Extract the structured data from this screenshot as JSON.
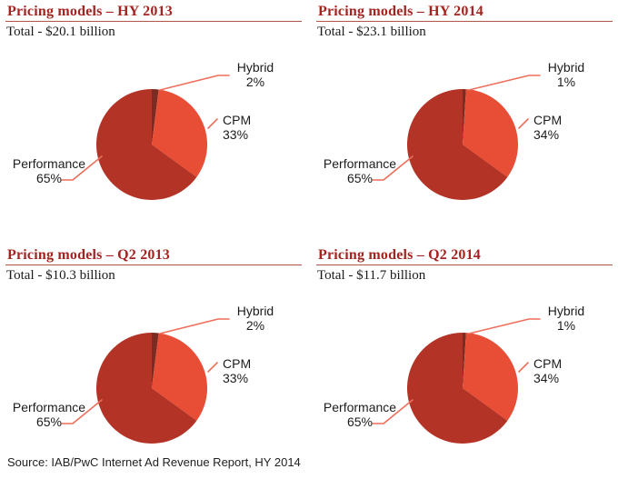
{
  "colors": {
    "title_red": "#A32421",
    "rule_red": "#B2564C",
    "leader_line": "#EE6F5B",
    "label_text": "#1C1C1C",
    "background": "#FFFFFF",
    "slice_performance": "#B33327",
    "slice_cpm": "#E84D35",
    "slice_hybrid": "#7A2C22"
  },
  "source": "Source: IAB/PwC Internet Ad Revenue Report, HY 2014",
  "chart_data": [
    {
      "type": "pie",
      "title": "Pricing models – HY 2013",
      "total_label": "Total - $20.1 billion",
      "total_billions_usd": 20.1,
      "labels": [
        "Hybrid",
        "CPM",
        "Performance"
      ],
      "values": [
        2,
        33,
        65
      ],
      "value_labels": [
        "2%",
        "33%",
        "65%"
      ],
      "slice_colors": [
        "#7A2C22",
        "#E84D35",
        "#B33327"
      ],
      "start_angle_deg": 0,
      "direction": "clockwise",
      "legend": "none"
    },
    {
      "type": "pie",
      "title": "Pricing models – HY 2014",
      "total_label": "Total - $23.1 billion",
      "total_billions_usd": 23.1,
      "labels": [
        "Hybrid",
        "CPM",
        "Performance"
      ],
      "values": [
        1,
        34,
        65
      ],
      "value_labels": [
        "1%",
        "34%",
        "65%"
      ],
      "slice_colors": [
        "#7A2C22",
        "#E84D35",
        "#B33327"
      ],
      "start_angle_deg": 0,
      "direction": "clockwise",
      "legend": "none"
    },
    {
      "type": "pie",
      "title": "Pricing models – Q2 2013",
      "total_label": "Total - $10.3 billion",
      "total_billions_usd": 10.3,
      "labels": [
        "Hybrid",
        "CPM",
        "Performance"
      ],
      "values": [
        2,
        33,
        65
      ],
      "value_labels": [
        "2%",
        "33%",
        "65%"
      ],
      "slice_colors": [
        "#7A2C22",
        "#E84D35",
        "#B33327"
      ],
      "start_angle_deg": 0,
      "direction": "clockwise",
      "legend": "none"
    },
    {
      "type": "pie",
      "title": "Pricing models – Q2 2014",
      "total_label": "Total - $11.7 billion",
      "total_billions_usd": 11.7,
      "labels": [
        "Hybrid",
        "CPM",
        "Performance"
      ],
      "values": [
        1,
        34,
        65
      ],
      "value_labels": [
        "1%",
        "34%",
        "65%"
      ],
      "slice_colors": [
        "#7A2C22",
        "#E84D35",
        "#B33327"
      ],
      "start_angle_deg": 0,
      "direction": "clockwise",
      "legend": "none"
    }
  ]
}
